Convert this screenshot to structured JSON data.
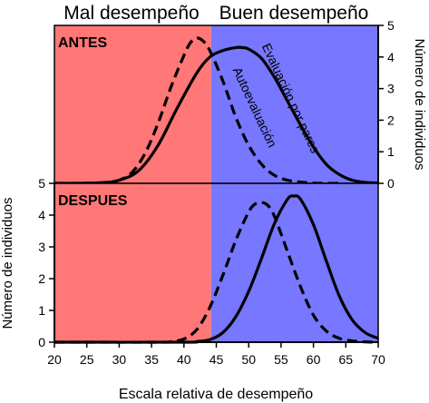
{
  "labels": {
    "bad_region": "Mal desempeño",
    "good_region": "Buen desempeño",
    "xlabel": "Escala relativa de desempeño",
    "ylabel": "Número de individuos"
  },
  "colors": {
    "bad_region": "#ff7777",
    "good_region": "#7777ff",
    "curve": "#000000",
    "background": "#ffffff"
  },
  "chart_data": [
    {
      "type": "line",
      "panel_label": "ANTES",
      "xlim": [
        20,
        70
      ],
      "ylim": [
        0,
        5
      ],
      "x_ticks": [
        20,
        25,
        30,
        35,
        40,
        45,
        50,
        55,
        60,
        65,
        70
      ],
      "y_ticks": [
        0,
        1,
        2,
        3,
        4,
        5
      ],
      "y_axis_side": "right",
      "regions": [
        {
          "name": "Mal desempeño",
          "from": 20,
          "to": 44.2,
          "color": "#ff7777"
        },
        {
          "name": "Buen desempeño",
          "from": 44.2,
          "to": 70,
          "color": "#7777ff"
        }
      ],
      "series": [
        {
          "name": "Evaluación por pares",
          "style": "solid",
          "x": [
            20,
            27,
            30,
            33,
            36,
            39,
            42,
            44,
            46,
            48,
            49,
            50,
            52,
            54,
            56,
            58,
            60,
            62,
            64,
            66,
            68,
            70
          ],
          "y": [
            0,
            0.02,
            0.1,
            0.4,
            1.2,
            2.4,
            3.5,
            4.0,
            4.2,
            4.3,
            4.3,
            4.25,
            3.95,
            3.35,
            2.6,
            1.85,
            1.15,
            0.6,
            0.28,
            0.1,
            0.03,
            0.01
          ]
        },
        {
          "name": "Autoevaluación",
          "style": "dashed",
          "x": [
            20,
            25,
            28,
            30,
            32,
            34,
            36,
            38,
            40,
            41,
            42,
            43,
            44,
            46,
            48,
            50,
            52,
            54,
            56,
            58,
            60,
            62,
            64
          ],
          "y": [
            0,
            0,
            0.02,
            0.1,
            0.35,
            0.95,
            1.9,
            3.05,
            4.05,
            4.45,
            4.6,
            4.5,
            4.2,
            3.25,
            2.1,
            1.2,
            0.6,
            0.25,
            0.1,
            0.04,
            0.01,
            0,
            0
          ]
        }
      ]
    },
    {
      "type": "line",
      "panel_label": "DESPUES",
      "xlim": [
        20,
        70
      ],
      "ylim": [
        0,
        5
      ],
      "x_ticks": [
        20,
        25,
        30,
        35,
        40,
        45,
        50,
        55,
        60,
        65,
        70
      ],
      "y_ticks": [
        0,
        1,
        2,
        3,
        4,
        5
      ],
      "y_axis_side": "left",
      "regions": [
        {
          "name": "Mal desempeño",
          "from": 20,
          "to": 44.2,
          "color": "#ff7777"
        },
        {
          "name": "Buen desempeño",
          "from": 44.2,
          "to": 70,
          "color": "#7777ff"
        }
      ],
      "series": [
        {
          "name": "Evaluación por pares",
          "style": "solid",
          "x": [
            20,
            40,
            42,
            44,
            46,
            48,
            50,
            52,
            54,
            56,
            57,
            58,
            60,
            62,
            64,
            66,
            68,
            70
          ],
          "y": [
            0,
            0,
            0.02,
            0.08,
            0.3,
            0.8,
            1.6,
            2.65,
            3.75,
            4.5,
            4.6,
            4.5,
            3.7,
            2.55,
            1.45,
            0.7,
            0.3,
            0.12
          ]
        },
        {
          "name": "Autoevaluación",
          "style": "dashed",
          "x": [
            20,
            36,
            38,
            40,
            42,
            44,
            46,
            48,
            50,
            51,
            52,
            53,
            54,
            56,
            58,
            60,
            62,
            64,
            66,
            68,
            70
          ],
          "y": [
            0,
            0,
            0.02,
            0.1,
            0.4,
            1.1,
            2.1,
            3.2,
            4.1,
            4.35,
            4.4,
            4.3,
            3.95,
            2.85,
            1.75,
            0.85,
            0.35,
            0.12,
            0.04,
            0.01,
            0
          ]
        }
      ]
    }
  ]
}
